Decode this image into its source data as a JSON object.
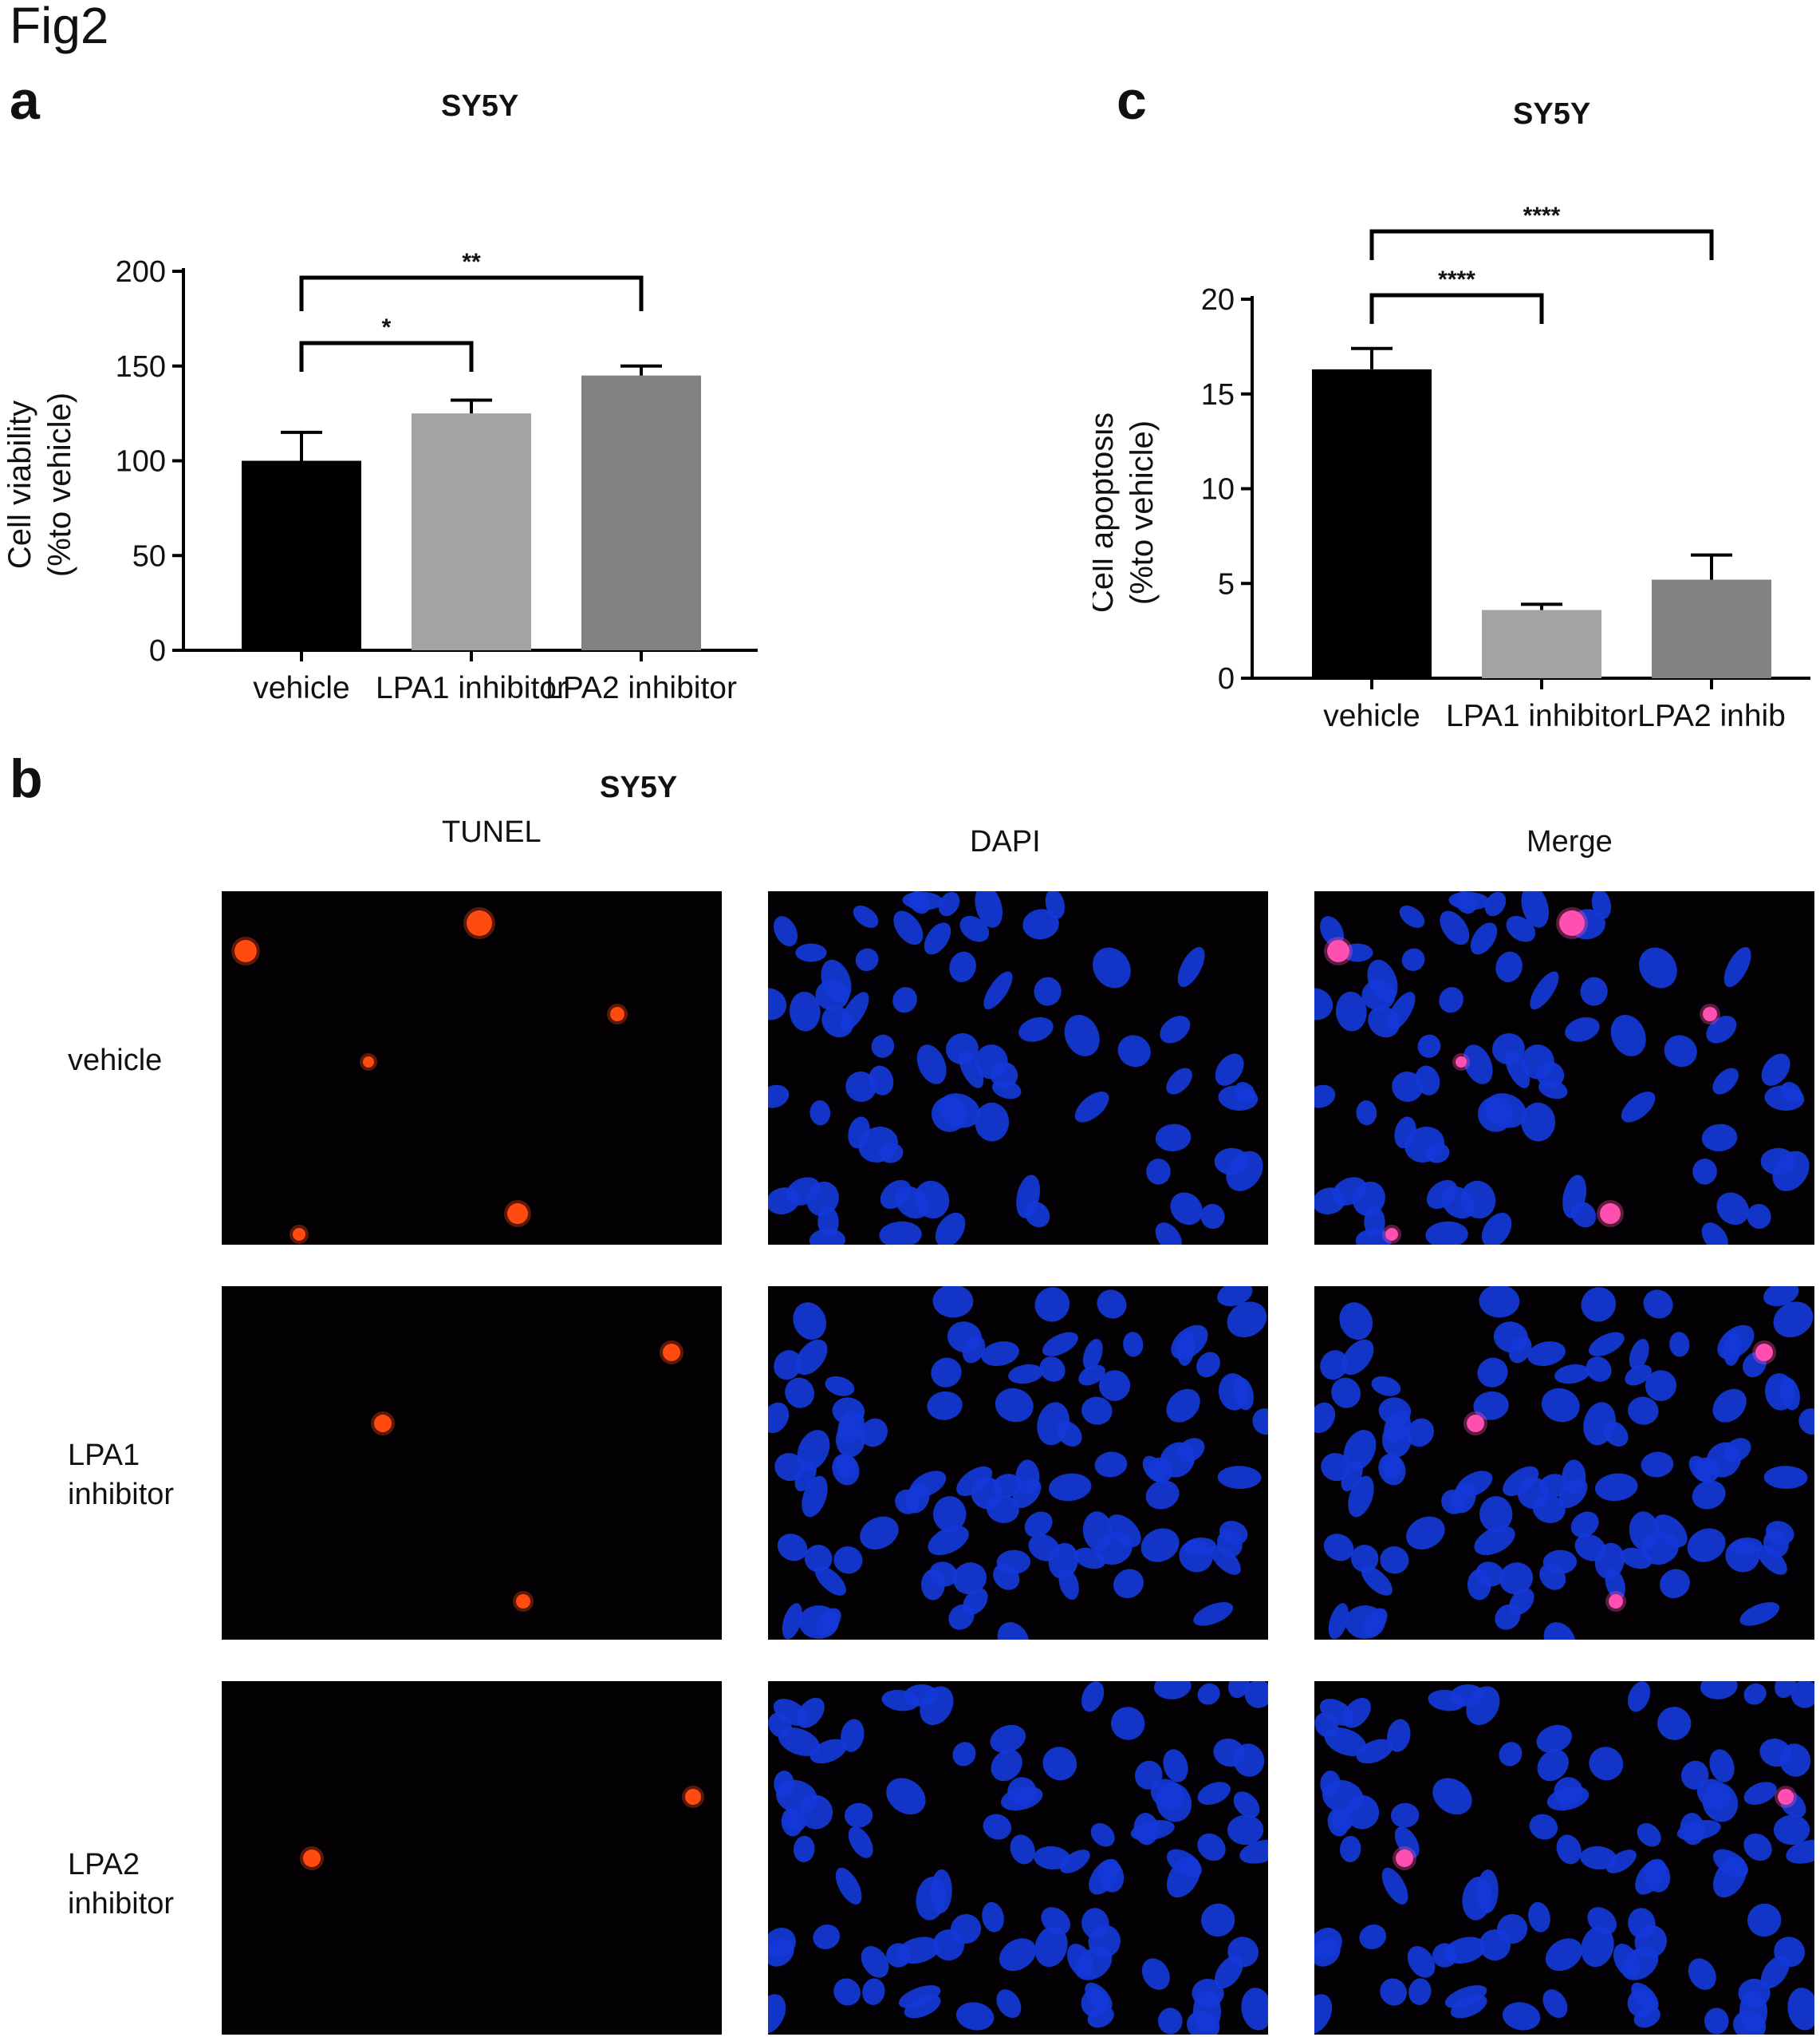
{
  "figure_label": "Fig2",
  "panel_a": {
    "letter": "a",
    "title": "SY5Y"
  },
  "panel_b": {
    "letter": "b",
    "title": "SY5Y",
    "columns": [
      "TUNEL",
      "DAPI",
      "Merge"
    ],
    "rows": [
      "vehicle",
      "LPA1\ninhibitor",
      "LPA2\ninhibitor"
    ]
  },
  "panel_c": {
    "letter": "c",
    "title": "SY5Y"
  },
  "colors": {
    "vehicle_bar": "#000000",
    "lpa1_bar": "#a3a3a6",
    "lpa2_bar": "#828282",
    "tunel_signal": "#ff4a10",
    "dapi_signal": "#1438d8",
    "merge_signal": "#ff4fb0",
    "micrograph_bg": "#040105"
  },
  "chart_data": [
    {
      "type": "bar",
      "panel": "a",
      "title": "SY5Y",
      "ylabel": "Cell viability",
      "ylabel2": "(%to vehicle)",
      "categories": [
        "vehicle",
        "LPA1 inhibitor",
        "LPA2 inhibitor"
      ],
      "values": [
        100,
        125,
        145
      ],
      "errors": [
        15,
        7,
        5
      ],
      "ylim": [
        0,
        200
      ],
      "yticks": [
        0,
        50,
        100,
        150,
        200
      ],
      "significance": [
        {
          "from": 0,
          "to": 1,
          "label": "*"
        },
        {
          "from": 0,
          "to": 2,
          "label": "**"
        }
      ]
    },
    {
      "type": "bar",
      "panel": "c",
      "title": "SY5Y",
      "ylabel": "Cell apoptosis",
      "ylabel2": "(%to vehicle)",
      "categories": [
        "vehicle",
        "LPA1 inhibitor",
        "LPA2 inhib"
      ],
      "values": [
        16.3,
        3.6,
        5.2
      ],
      "errors": [
        1.1,
        0.3,
        1.3
      ],
      "ylim": [
        0,
        20
      ],
      "yticks": [
        0,
        5,
        10,
        15,
        20
      ],
      "significance": [
        {
          "from": 0,
          "to": 1,
          "label": "****"
        },
        {
          "from": 0,
          "to": 2,
          "label": "****"
        }
      ]
    }
  ]
}
